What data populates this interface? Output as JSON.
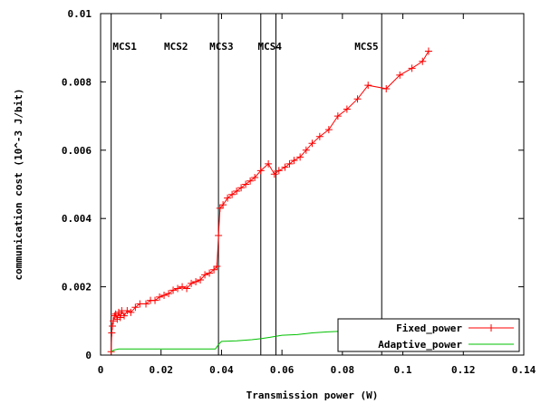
{
  "chart_data": {
    "type": "line",
    "title": "",
    "xlabel": "Transmission power (W)",
    "ylabel": "communication cost (10^-3 J/bit)",
    "xlim": [
      0,
      0.14
    ],
    "ylim": [
      0,
      0.01
    ],
    "xticks": [
      "0",
      "0.02",
      "0.04",
      "0.06",
      "0.08",
      "0.1",
      "0.12",
      "0.14"
    ],
    "xtick_values": [
      0,
      0.02,
      0.04,
      0.06,
      0.08,
      0.1,
      0.12,
      0.14
    ],
    "yticks": [
      "0",
      "0.002",
      "0.004",
      "0.006",
      "0.008",
      "0.01"
    ],
    "ytick_values": [
      0,
      0.002,
      0.004,
      0.006,
      0.008,
      0.01
    ],
    "grid": false,
    "legend_position": "bottom-right",
    "regions": [
      {
        "label": "MCS1",
        "x": 0.0035
      },
      {
        "label": "MCS2",
        "x": 0.039
      },
      {
        "label": "MCS3",
        "x": 0.053
      },
      {
        "label": "MCS4",
        "x": 0.058
      },
      {
        "label": "MCS5",
        "x": 0.093
      }
    ],
    "region_label_positions": [
      0.004,
      0.021,
      0.036,
      0.052,
      0.084
    ],
    "series": [
      {
        "name": "Fixed_power",
        "color": "#ff0000",
        "marker": "plus",
        "x": [
          0.0035,
          0.0037,
          0.0039,
          0.0042,
          0.0046,
          0.005,
          0.0055,
          0.006,
          0.0065,
          0.007,
          0.0078,
          0.0088,
          0.01,
          0.0115,
          0.013,
          0.015,
          0.0165,
          0.018,
          0.0195,
          0.021,
          0.0225,
          0.024,
          0.0255,
          0.027,
          0.0285,
          0.03,
          0.0315,
          0.033,
          0.0345,
          0.036,
          0.0375,
          0.0385,
          0.039,
          0.0395,
          0.0405,
          0.042,
          0.0435,
          0.045,
          0.0465,
          0.048,
          0.0495,
          0.051,
          0.053,
          0.0555,
          0.0575,
          0.059,
          0.061,
          0.0625,
          0.064,
          0.066,
          0.068,
          0.07,
          0.0725,
          0.0755,
          0.0785,
          0.0815,
          0.085,
          0.0885,
          0.0945,
          0.099,
          0.103,
          0.1065,
          0.1085
        ],
        "y": [
          0.0001,
          0.00065,
          0.00085,
          0.001,
          0.00115,
          0.0012,
          0.00105,
          0.00125,
          0.0011,
          0.0013,
          0.00115,
          0.0013,
          0.00125,
          0.0014,
          0.0015,
          0.0015,
          0.0016,
          0.0016,
          0.0017,
          0.00175,
          0.0018,
          0.0019,
          0.00195,
          0.002,
          0.00195,
          0.0021,
          0.00215,
          0.0022,
          0.00235,
          0.0024,
          0.0025,
          0.0026,
          0.0035,
          0.0043,
          0.0044,
          0.0046,
          0.0047,
          0.0048,
          0.0049,
          0.005,
          0.0051,
          0.0052,
          0.0054,
          0.0056,
          0.0053,
          0.0054,
          0.0055,
          0.0056,
          0.0057,
          0.0058,
          0.006,
          0.0062,
          0.0064,
          0.0066,
          0.007,
          0.0072,
          0.0075,
          0.0079,
          0.0078,
          0.0082,
          0.0084,
          0.0086,
          0.0089
        ]
      },
      {
        "name": "Adaptive_power",
        "color": "#00c000",
        "marker": "none",
        "x": [
          0.0035,
          0.0045,
          0.006,
          0.01,
          0.02,
          0.03,
          0.038,
          0.0389,
          0.04,
          0.045,
          0.05,
          0.053,
          0.056,
          0.06,
          0.065,
          0.07,
          0.075,
          0.08,
          0.085,
          0.09,
          0.095,
          0.1,
          0.105,
          0.108
        ],
        "y": [
          0.0001,
          0.00015,
          0.00018,
          0.00018,
          0.00018,
          0.00018,
          0.00018,
          0.0003,
          0.0004,
          0.00042,
          0.00045,
          0.00048,
          0.00052,
          0.00058,
          0.0006,
          0.00065,
          0.00068,
          0.0007,
          0.00072,
          0.00075,
          0.00075,
          0.00078,
          0.0008,
          0.0008
        ]
      }
    ]
  }
}
